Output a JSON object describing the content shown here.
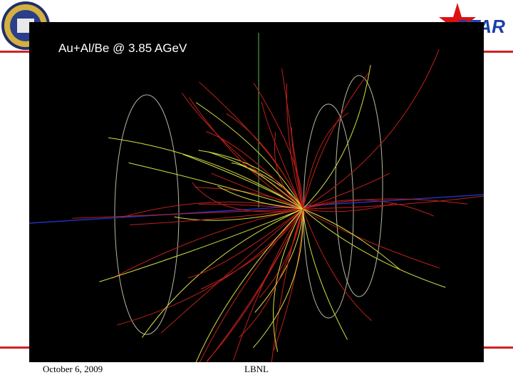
{
  "slide": {
    "event_title": "Au+Al/Be @ 3.85 AGeV",
    "logo_text": "STAR",
    "footer_date": "October 6, 2009",
    "footer_center": "LBNL"
  },
  "colors": {
    "rule": "#cc2222",
    "background": "#000000",
    "track_red": "#c0201a",
    "track_yellow": "#d8e040",
    "beam_axis": "#2030c0",
    "detector_outline": "#b8b8a0"
  }
}
